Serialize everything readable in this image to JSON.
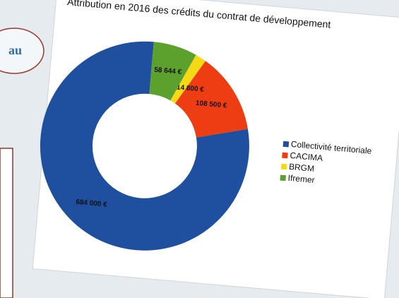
{
  "side_note": "au",
  "chart_data": {
    "type": "donut",
    "title": "Attribution en 2016 des crédits du contrat de développement",
    "categories": [
      "Collectivité territoriale",
      "CACIMA",
      "BRGM",
      "Ifremer"
    ],
    "values": [
      684000,
      108500,
      14800,
      58644
    ],
    "value_labels": [
      "684 000 €",
      "108 500 €",
      "14 800 €",
      "58 644 €"
    ],
    "colors": [
      "#1f4f9f",
      "#ee3d12",
      "#f6d915",
      "#5ca12e"
    ],
    "legend": "right"
  }
}
